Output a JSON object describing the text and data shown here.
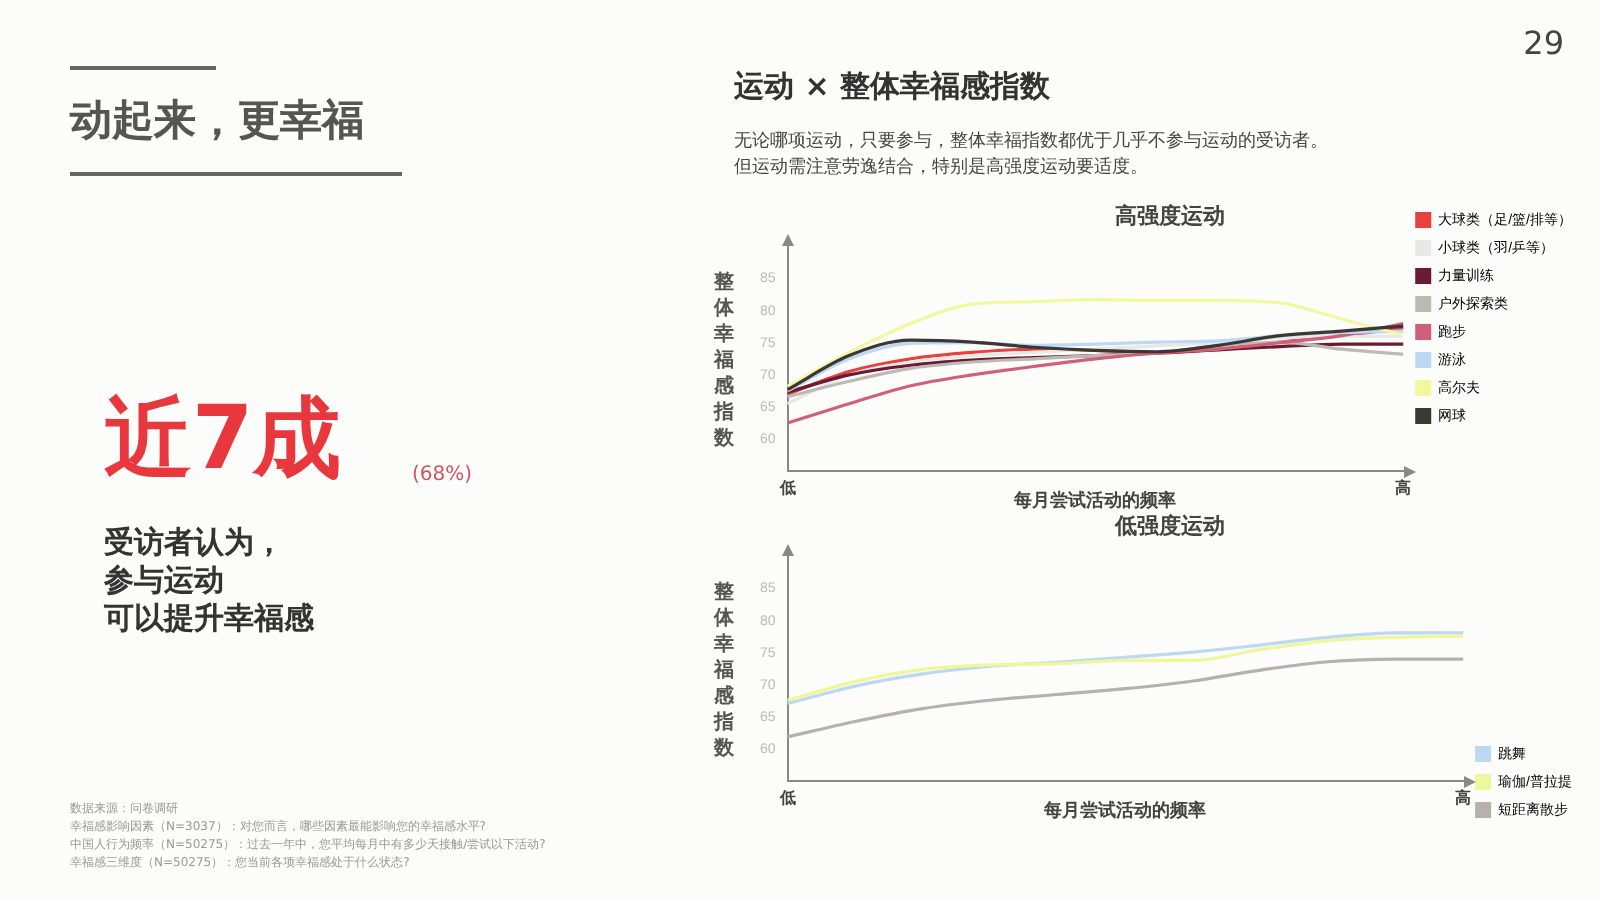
{
  "chart_data": [
    {
      "type": "line",
      "title": "高强度运动",
      "xlabel": "每月尝试活动的频率",
      "ylabel": "整体幸福感指数",
      "categories": [
        "低",
        null,
        null,
        null,
        null,
        null,
        null,
        null,
        null,
        null,
        "高"
      ],
      "ylim": [
        55,
        90
      ],
      "yticks": [
        60,
        65,
        70,
        75,
        80,
        85
      ],
      "grid": false,
      "legend": "right",
      "marker": "none",
      "line_style": "solid",
      "series": [
        {
          "name": "大球类（足/篮/排等）",
          "color": "#e8403f",
          "values": [
            67,
            70.5,
            72.5,
            73.5,
            74,
            73.8,
            73.4,
            74,
            75.1,
            76.1,
            77.3
          ]
        },
        {
          "name": "小球类（羽/乒等）",
          "color": "#e6e9e8",
          "values": [
            65.5,
            70,
            72,
            73,
            73.5,
            74,
            74.5,
            75,
            75.8,
            76,
            76
          ]
        },
        {
          "name": "力量训练",
          "color": "#6b1a33",
          "values": [
            67.3,
            70,
            71.5,
            72.3,
            72.7,
            73,
            73.4,
            73.9,
            74.4,
            74.8,
            74.8
          ]
        },
        {
          "name": "户外探索类",
          "color": "#bdbab5",
          "values": [
            66.6,
            69,
            71,
            72,
            72.5,
            73,
            73.4,
            74.5,
            75.1,
            74,
            73.2
          ]
        },
        {
          "name": "跑步",
          "color": "#d0607a",
          "values": [
            62.5,
            65.5,
            68.3,
            70,
            71.3,
            72.5,
            73.4,
            74,
            75,
            76.1,
            78
          ]
        },
        {
          "name": "游泳",
          "color": "#bcd8f2",
          "values": [
            67.5,
            72.5,
            74.9,
            75,
            74.6,
            74.8,
            75.1,
            75.3,
            76.1,
            76.6,
            76.8
          ]
        },
        {
          "name": "高尔夫",
          "color": "#f3f7a0",
          "values": [
            68.2,
            73.5,
            78,
            81,
            81.4,
            81.7,
            81.6,
            81.6,
            81.2,
            78.7,
            76.2
          ]
        },
        {
          "name": "网球",
          "color": "#3b3733",
          "values": [
            67.7,
            73,
            75.4,
            75.1,
            74.3,
            73.8,
            73.6,
            74.6,
            76.1,
            76.8,
            77.6
          ]
        }
      ],
      "annotations": [
        "29",
        "动起来，更幸福",
        "近7成",
        "(68%)",
        "受访者认为，",
        "参与运动",
        "可以提升幸福感",
        "运动 × 整体幸福感指数",
        "无论哪项运动，只要参与，整体幸福指数都优于几乎不参与运动的受访者。",
        "但运动需注意劳逸结合，特别是高强度运动要适度。",
        "数据来源：问卷调研",
        "幸福感影响因素（N=3037）：对您而言，哪些因素最能影响您的幸福感水平?",
        "中国人行为频率（N=50275）：过去一年中，您平均每月中有多少天接触/尝试以下活动?",
        "幸福感三维度（N=50275）：您当前各项幸福感处于什么状态?"
      ]
    },
    {
      "type": "line",
      "title": "低强度运动",
      "xlabel": "每月尝试活动的频率",
      "ylabel": "整体幸福感指数",
      "categories": [
        "低",
        null,
        null,
        null,
        null,
        null,
        null,
        null,
        null,
        null,
        "高"
      ],
      "ylim": [
        55,
        90
      ],
      "yticks": [
        60,
        65,
        70,
        75,
        80,
        85
      ],
      "grid": false,
      "legend": "bottom right",
      "marker": "none",
      "line_style": "solid",
      "series": [
        {
          "name": "跳舞",
          "color": "#bcd8f2",
          "values": [
            67.1,
            69.8,
            71.7,
            72.9,
            73.5,
            74.3,
            75.1,
            76.2,
            77.4,
            78.1,
            78.1
          ]
        },
        {
          "name": "瑜伽/普拉提",
          "color": "#eef79a",
          "values": [
            67.6,
            70.5,
            72.4,
            73.1,
            73.3,
            73.8,
            73.8,
            75.5,
            76.9,
            77.4,
            77.6
          ]
        },
        {
          "name": "短距离散步",
          "color": "#b5b1ac",
          "values": [
            61.9,
            64.3,
            66.3,
            67.6,
            68.5,
            69.4,
            70.6,
            72.3,
            73.6,
            74,
            74
          ]
        }
      ]
    }
  ]
}
